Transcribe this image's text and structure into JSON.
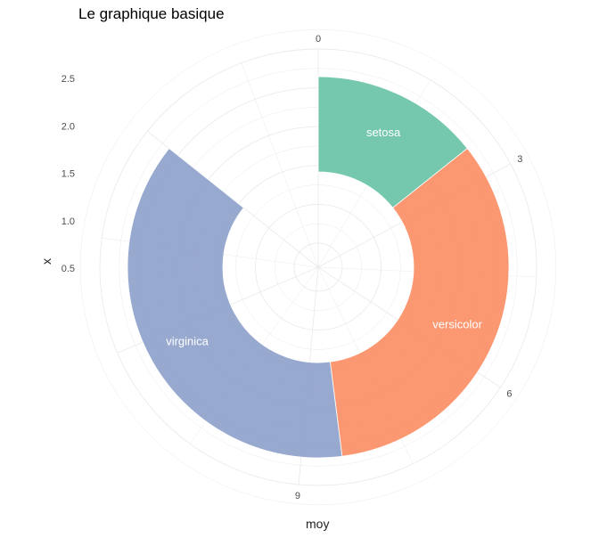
{
  "chart_data": {
    "type": "pie",
    "title": "Le graphique basique",
    "xlabel": "moy",
    "ylabel": "x",
    "theta_ticks": [
      "0",
      "3",
      "6",
      "9"
    ],
    "theta_tick_values": [
      0,
      3,
      6,
      9
    ],
    "theta_max": 17.5,
    "radial_ticks": [
      "0.5",
      "1.0",
      "1.5",
      "2.0",
      "2.5"
    ],
    "radial_tick_values": [
      0.5,
      1.0,
      1.5,
      2.0,
      2.5
    ],
    "categories": [
      "setosa",
      "versicolor",
      "virginica"
    ],
    "values": [
      2.5,
      5.9,
      6.6
    ],
    "colors": [
      "#66c2a5",
      "#fc8d62",
      "#8da0cb"
    ],
    "inner_radius": 1,
    "outer_radius": 2,
    "grid": true,
    "legend": "none"
  }
}
